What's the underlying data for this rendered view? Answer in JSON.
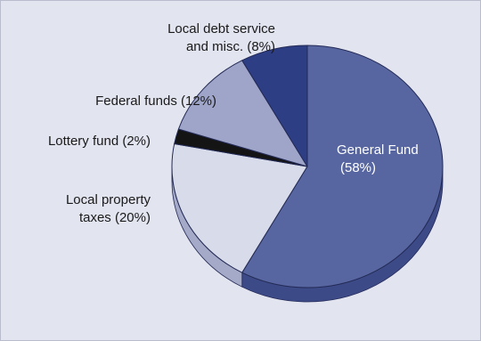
{
  "chart_data": {
    "type": "pie",
    "style": "3d",
    "slices": [
      {
        "label": "General Fund",
        "line1": "General Fund",
        "line2": "(58%)",
        "value": 58,
        "color": "#5766a0",
        "side_color": "#3d4a88"
      },
      {
        "label": "Local property taxes",
        "line1": "Local property",
        "line2": "taxes (20%)",
        "value": 20,
        "color": "#d8dbe9",
        "side_color": "#a5aac8"
      },
      {
        "label": "Lottery fund",
        "line1": "Lottery fund (2%)",
        "value": 2,
        "color": "#141414",
        "side_color": "#141414"
      },
      {
        "label": "Federal funds",
        "line1": "Federal funds (12%)",
        "value": 12,
        "color": "#9ea5c8",
        "side_color": "#7d86b0"
      },
      {
        "label": "Local debt service and misc.",
        "line1": "Local debt service",
        "line2": "and misc. (8%)",
        "value": 8,
        "color": "#2e3e85",
        "side_color": "#243270"
      }
    ]
  }
}
